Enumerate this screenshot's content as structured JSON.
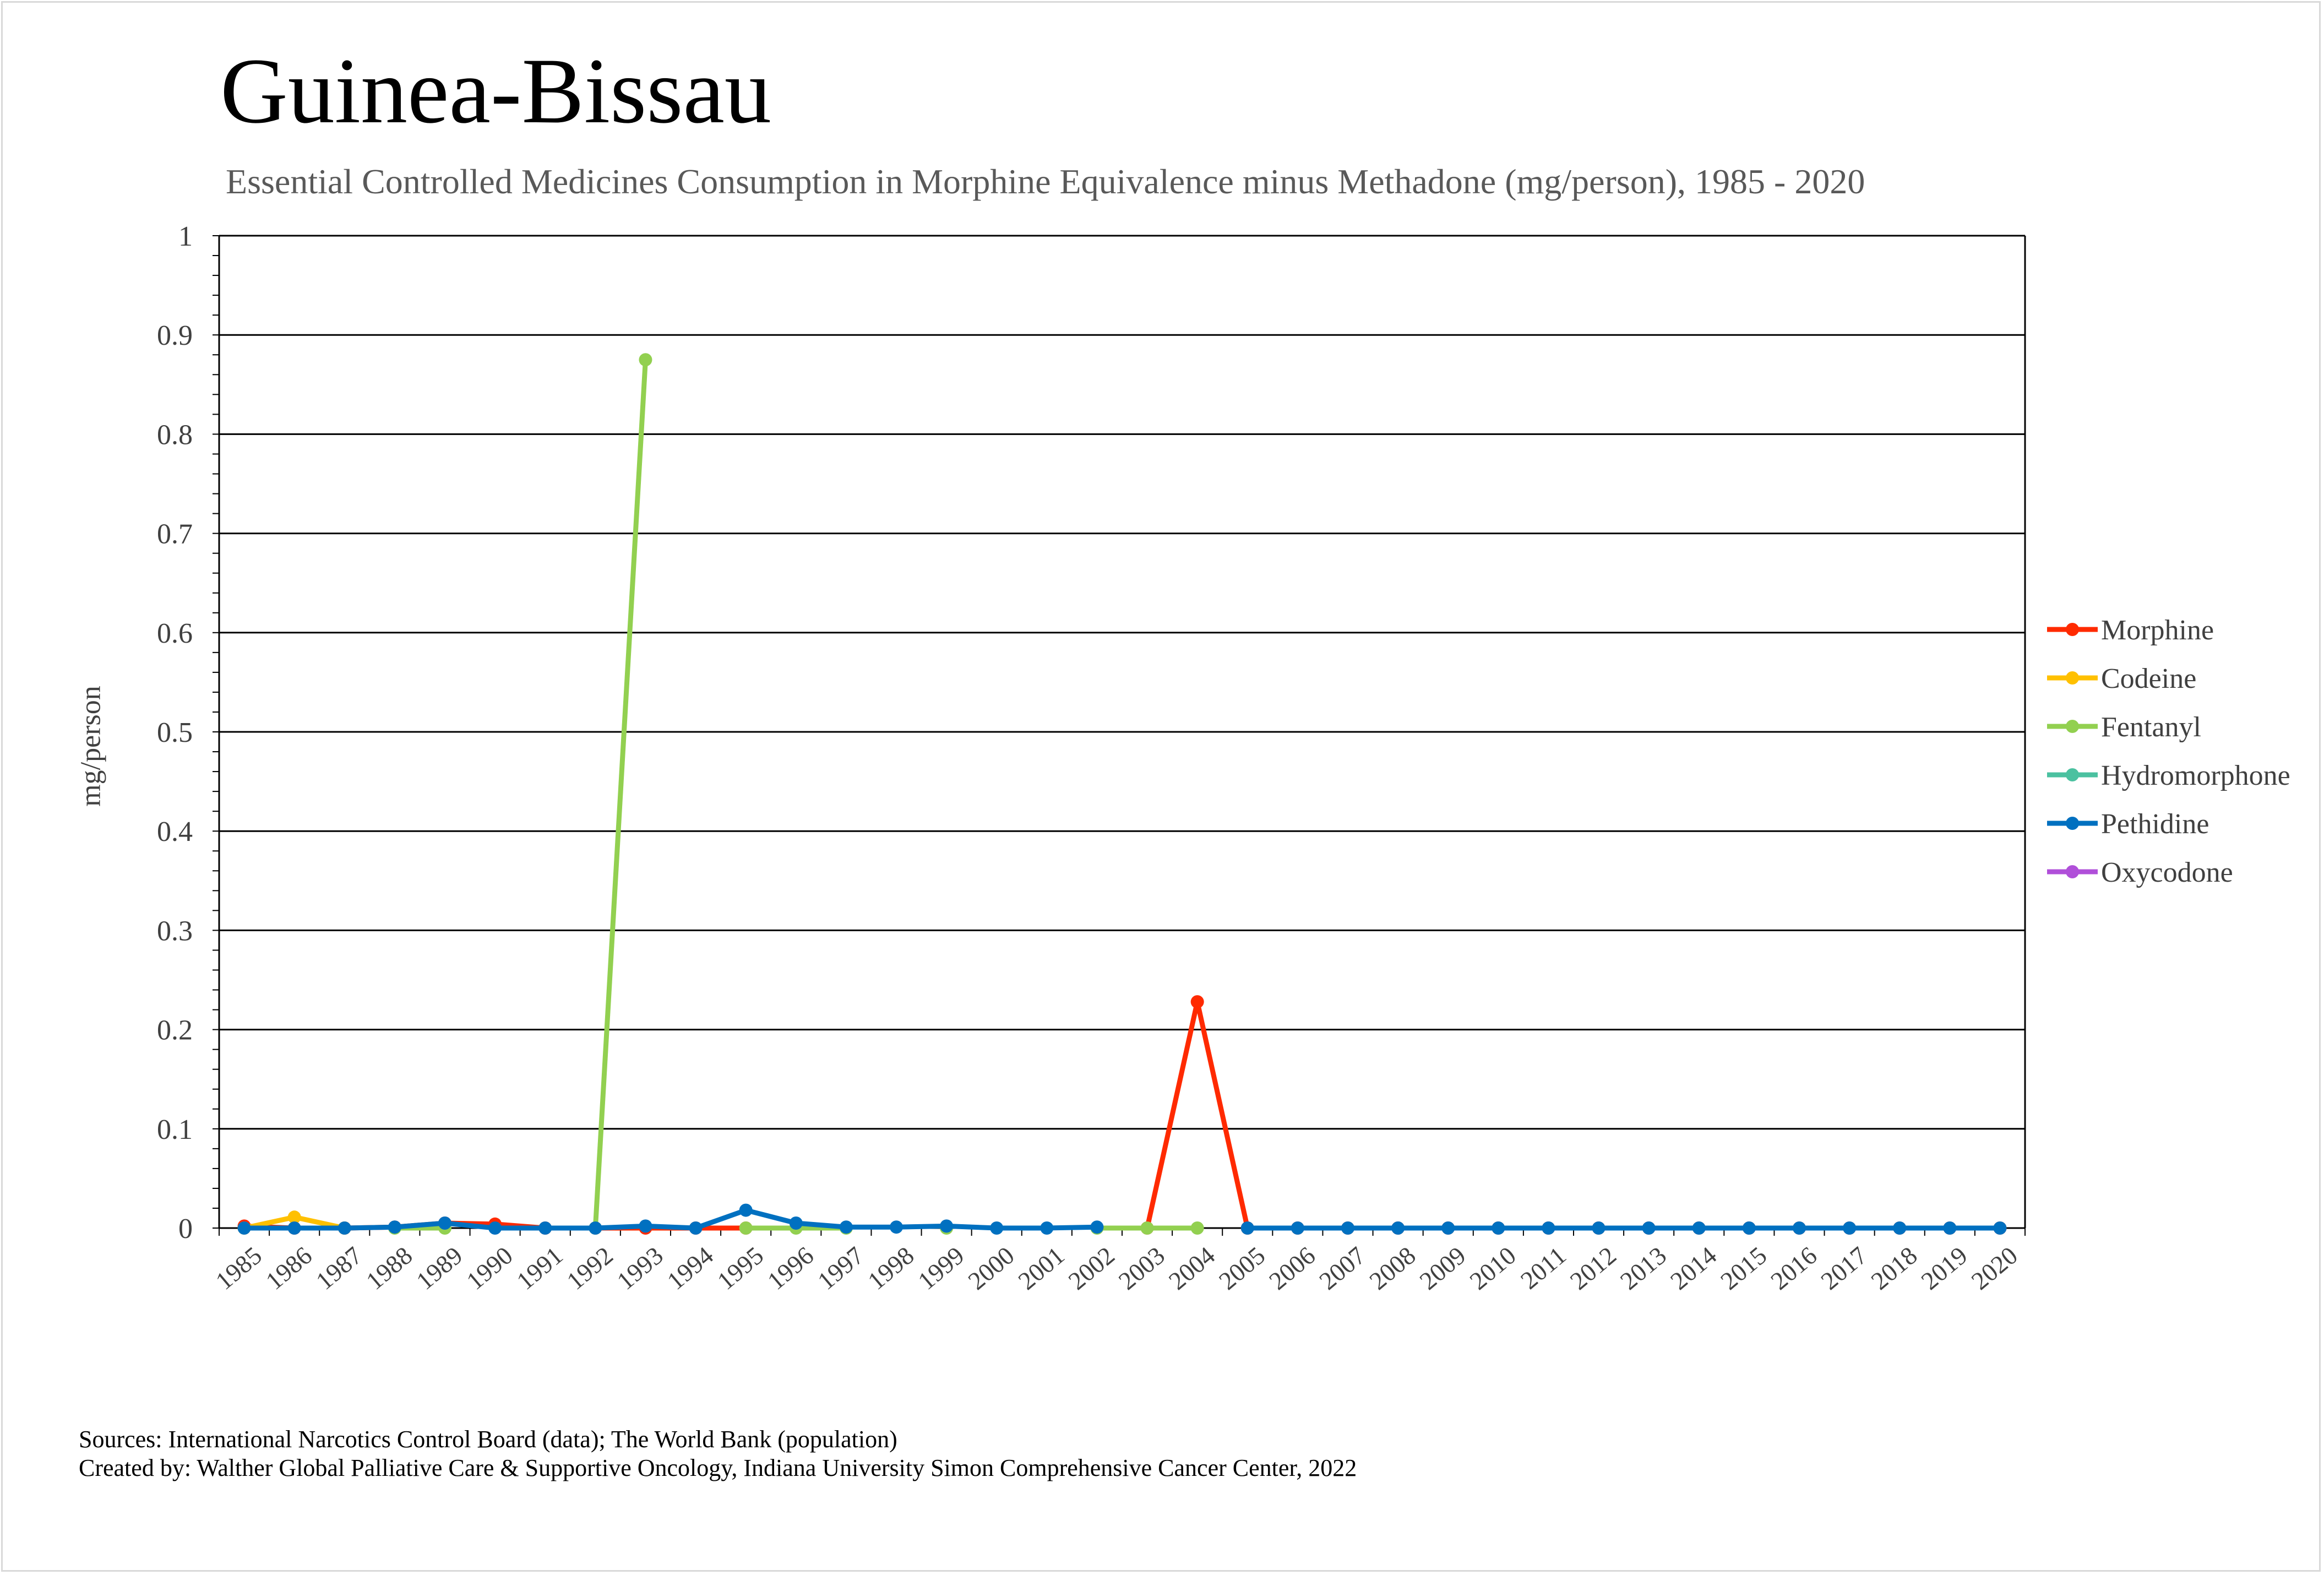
{
  "chart_data": {
    "type": "line",
    "title": "Guinea-Bissau",
    "subtitle": "Essential Controlled Medicines Consumption in Morphine Equivalence minus Methadone (mg/person), 1985 - 2020",
    "ylabel": "mg/person",
    "xlabel": "",
    "ylim": [
      0,
      1
    ],
    "yticks": [
      "0",
      "0.1",
      "0.2",
      "0.3",
      "0.4",
      "0.5",
      "0.6",
      "0.7",
      "0.8",
      "0.9",
      "1"
    ],
    "grid": true,
    "legend_position": "right",
    "categories": [
      "1985",
      "1986",
      "1987",
      "1988",
      "1989",
      "1990",
      "1991",
      "1992",
      "1993",
      "1994",
      "1995",
      "1996",
      "1997",
      "1998",
      "1999",
      "2000",
      "2001",
      "2002",
      "2003",
      "2004",
      "2005",
      "2006",
      "2007",
      "2008",
      "2009",
      "2010",
      "2011",
      "2012",
      "2013",
      "2014",
      "2015",
      "2016",
      "2017",
      "2018",
      "2019",
      "2020"
    ],
    "series": [
      {
        "name": "Morphine",
        "color": "#ff2a00",
        "values": [
          0.002,
          0,
          0,
          0.001,
          0.005,
          0.004,
          0,
          0,
          0,
          0,
          0,
          null,
          null,
          null,
          null,
          null,
          null,
          null,
          0,
          0.228,
          0,
          0,
          0,
          0,
          0,
          0,
          0,
          0,
          0,
          0,
          0,
          0,
          0,
          0,
          0,
          0
        ]
      },
      {
        "name": "Codeine",
        "color": "#ffc000",
        "values": [
          0,
          0.011,
          0,
          null,
          null,
          null,
          null,
          null,
          null,
          null,
          null,
          null,
          null,
          null,
          null,
          null,
          null,
          null,
          null,
          null,
          null,
          null,
          null,
          null,
          null,
          null,
          null,
          null,
          null,
          null,
          null,
          null,
          null,
          null,
          null,
          null
        ]
      },
      {
        "name": "Fentanyl",
        "color": "#92d050",
        "values": [
          null,
          null,
          null,
          0,
          0,
          null,
          null,
          0,
          0.875,
          null,
          0,
          0,
          0,
          null,
          0,
          null,
          null,
          0,
          0,
          0,
          null,
          null,
          null,
          null,
          null,
          null,
          null,
          null,
          null,
          null,
          null,
          null,
          null,
          null,
          null,
          null
        ]
      },
      {
        "name": "Hydromorphone",
        "color": "#4bc1a0",
        "values": [
          null,
          null,
          null,
          null,
          null,
          null,
          null,
          null,
          null,
          null,
          null,
          null,
          null,
          null,
          null,
          null,
          null,
          null,
          null,
          null,
          null,
          null,
          null,
          null,
          null,
          null,
          null,
          null,
          null,
          null,
          null,
          null,
          null,
          null,
          null,
          null
        ]
      },
      {
        "name": "Pethidine",
        "color": "#0070c0",
        "values": [
          0,
          0,
          0,
          0.001,
          0.005,
          0,
          0,
          0,
          0.002,
          0,
          0.018,
          0.005,
          0.001,
          0.001,
          0.002,
          0,
          0,
          0.001,
          null,
          null,
          0,
          0,
          0,
          0,
          0,
          0,
          0,
          0,
          0,
          0,
          0,
          0,
          0,
          0,
          0,
          0
        ]
      },
      {
        "name": "Oxycodone",
        "color": "#b04fd9",
        "values": [
          null,
          null,
          null,
          null,
          null,
          null,
          null,
          null,
          null,
          null,
          null,
          null,
          null,
          null,
          null,
          null,
          null,
          null,
          null,
          null,
          null,
          null,
          null,
          null,
          null,
          null,
          null,
          null,
          null,
          null,
          null,
          null,
          null,
          null,
          null,
          null
        ]
      }
    ]
  },
  "footer": {
    "sources": "Sources: International Narcotics Control Board (data); The World Bank (population)",
    "created_by": "Created by: Walther Global Palliative Care & Supportive Oncology, Indiana University Simon Comprehensive Cancer Center, 2022"
  }
}
